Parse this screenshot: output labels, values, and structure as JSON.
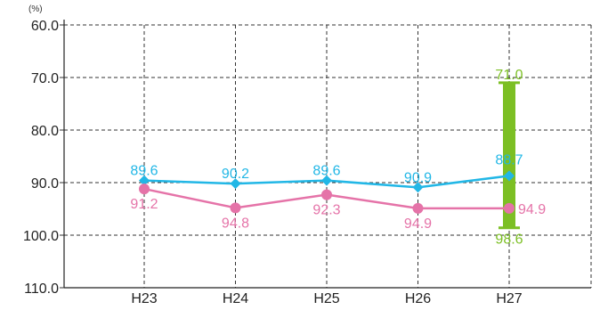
{
  "chart_data": {
    "type": "line",
    "unit_label": "(%)",
    "categories": [
      "H23",
      "H24",
      "H25",
      "H26",
      "H27"
    ],
    "y_ticks": [
      "60.0",
      "70.0",
      "80.0",
      "90.0",
      "100.0",
      "110.0"
    ],
    "ylim": [
      60,
      110
    ],
    "y_inverted": true,
    "grid": true,
    "series": [
      {
        "color": "#22b7e6",
        "marker": "diamond",
        "values": [
          89.6,
          90.2,
          89.6,
          90.9,
          88.7
        ],
        "labels": [
          "89.6",
          "90.2",
          "89.6",
          "90.9",
          "88.7"
        ]
      },
      {
        "color": "#e573a8",
        "marker": "circle",
        "values": [
          91.2,
          94.8,
          92.3,
          94.9,
          94.9
        ],
        "labels": [
          "91.2",
          "94.8",
          "92.3",
          "94.9",
          "94.9"
        ]
      }
    ],
    "range_bar": {
      "category": "H27",
      "color": "#7cbf24",
      "min": 71.0,
      "max": 98.6,
      "min_label": "71.0",
      "max_label": "98.6"
    }
  }
}
